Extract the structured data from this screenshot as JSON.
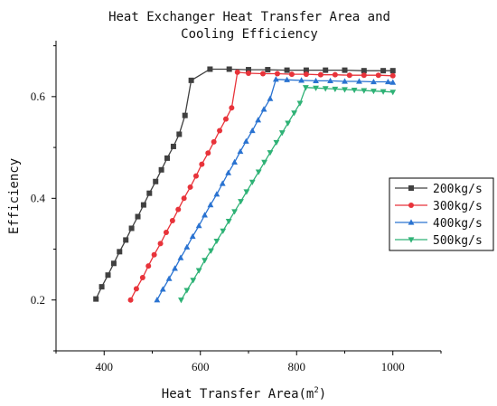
{
  "chart_data": {
    "type": "line",
    "title_line1": "Heat Exchanger Heat Transfer Area and",
    "title_line2": "Cooling Efficiency",
    "xlabel": "Heat Transfer Area(m",
    "xlabel_sup": "2",
    "xlabel_close": ")",
    "ylabel": "Efficiency",
    "xlim": [
      300,
      1100
    ],
    "ylim": [
      0.1,
      0.71
    ],
    "xticks": [
      400,
      600,
      800,
      1000
    ],
    "yticks": [
      0.2,
      0.4,
      0.6
    ],
    "ytick_labels": [
      "0.2",
      "0.4",
      "0.6"
    ],
    "legend_position": "right-middle",
    "grid": false,
    "series": [
      {
        "name": "200kg/s",
        "color": "#404040",
        "marker": "square",
        "x": [
          383,
          395,
          408,
          420,
          432,
          445,
          457,
          470,
          482,
          494,
          507,
          519,
          531,
          544,
          556,
          568,
          581,
          620,
          660,
          700,
          740,
          780,
          820,
          860,
          900,
          940,
          980,
          1000
        ],
        "y": [
          0.202,
          0.226,
          0.249,
          0.272,
          0.295,
          0.318,
          0.341,
          0.364,
          0.387,
          0.41,
          0.433,
          0.456,
          0.479,
          0.502,
          0.526,
          0.563,
          0.632,
          0.654,
          0.654,
          0.653,
          0.653,
          0.652,
          0.652,
          0.652,
          0.652,
          0.651,
          0.651,
          0.651
        ]
      },
      {
        "name": "300kg/s",
        "color": "#e8333a",
        "marker": "circle",
        "x": [
          455,
          467,
          480,
          492,
          504,
          517,
          529,
          542,
          554,
          566,
          579,
          591,
          603,
          616,
          628,
          640,
          653,
          665,
          677,
          700,
          730,
          760,
          790,
          820,
          850,
          880,
          910,
          940,
          970,
          1000
        ],
        "y": [
          0.2,
          0.222,
          0.244,
          0.267,
          0.289,
          0.311,
          0.333,
          0.356,
          0.378,
          0.4,
          0.422,
          0.444,
          0.467,
          0.489,
          0.511,
          0.533,
          0.556,
          0.578,
          0.648,
          0.646,
          0.645,
          0.645,
          0.644,
          0.644,
          0.643,
          0.643,
          0.642,
          0.642,
          0.642,
          0.641
        ]
      },
      {
        "name": "400kg/s",
        "color": "#2a73d1",
        "marker": "triangle-up",
        "x": [
          510,
          522,
          535,
          547,
          559,
          572,
          584,
          597,
          609,
          621,
          634,
          646,
          658,
          671,
          683,
          695,
          708,
          720,
          732,
          745,
          757,
          780,
          810,
          840,
          870,
          900,
          930,
          960,
          990,
          1000
        ],
        "y": [
          0.2,
          0.221,
          0.242,
          0.262,
          0.283,
          0.304,
          0.325,
          0.346,
          0.367,
          0.387,
          0.408,
          0.429,
          0.45,
          0.471,
          0.492,
          0.512,
          0.533,
          0.554,
          0.575,
          0.596,
          0.634,
          0.633,
          0.632,
          0.631,
          0.631,
          0.63,
          0.63,
          0.629,
          0.629,
          0.628
        ]
      },
      {
        "name": "500kg/s",
        "color": "#2fb276",
        "marker": "triangle-down",
        "x": [
          560,
          572,
          585,
          597,
          609,
          622,
          634,
          647,
          659,
          671,
          684,
          696,
          708,
          721,
          733,
          745,
          758,
          770,
          782,
          795,
          807,
          819,
          840,
          860,
          880,
          900,
          920,
          940,
          960,
          980,
          1000
        ],
        "y": [
          0.2,
          0.219,
          0.239,
          0.258,
          0.278,
          0.297,
          0.316,
          0.336,
          0.355,
          0.374,
          0.394,
          0.413,
          0.432,
          0.452,
          0.471,
          0.49,
          0.51,
          0.529,
          0.548,
          0.568,
          0.587,
          0.618,
          0.617,
          0.616,
          0.615,
          0.614,
          0.613,
          0.612,
          0.611,
          0.61,
          0.609
        ]
      }
    ]
  }
}
